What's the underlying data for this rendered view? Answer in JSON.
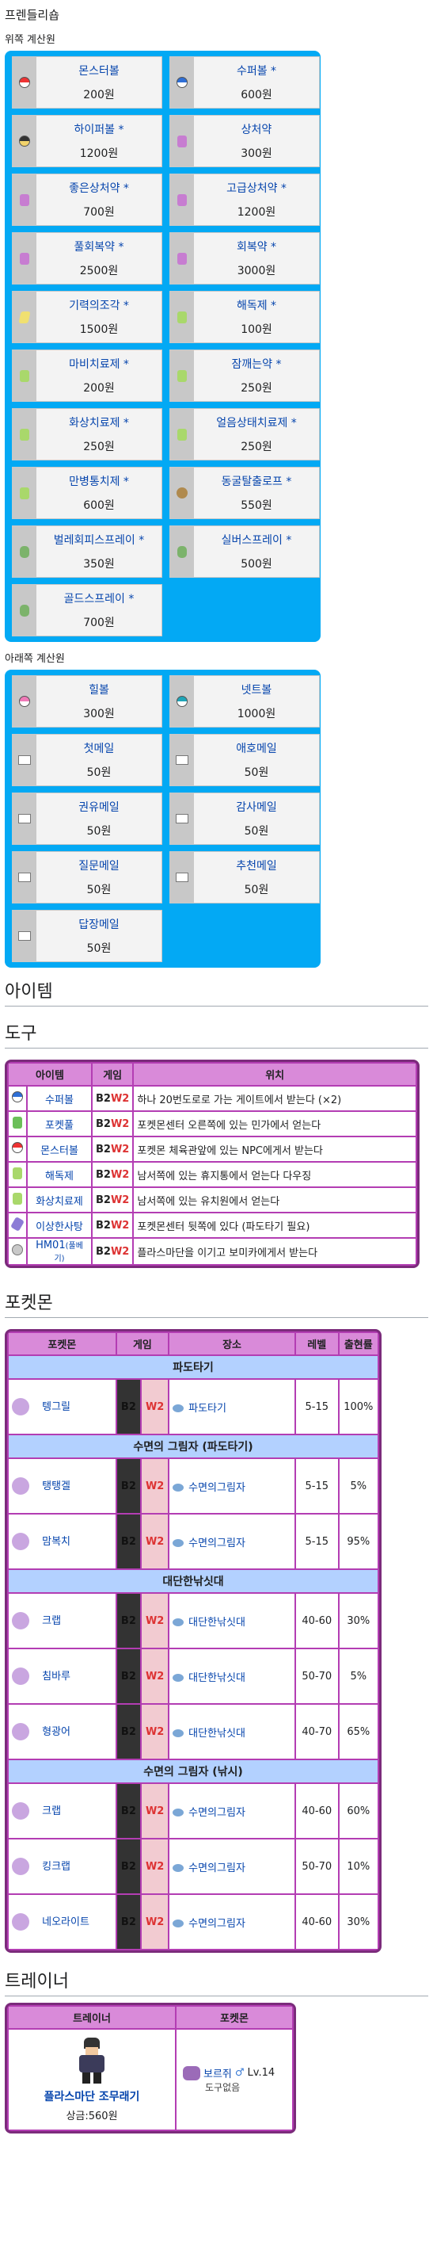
{
  "page": {
    "friendly_shop_title": "프렌들리숍",
    "upper_calc": "위쪽 계산원",
    "lower_calc": "아래쪽 계산원",
    "h_items": "아이템",
    "h_tools": "도구",
    "h_pokemon": "포켓몬",
    "h_trainer": "트레이너"
  },
  "upper_items": [
    {
      "name": "몬스터볼",
      "price": "200원",
      "icon": "red-ball"
    },
    {
      "name": "수퍼볼 *",
      "price": "600원",
      "icon": "blue-ball"
    },
    {
      "name": "하이퍼볼 *",
      "price": "1200원",
      "icon": "yellow-ball"
    },
    {
      "name": "상처약",
      "price": "300원",
      "icon": "potion"
    },
    {
      "name": "좋은상처약 *",
      "price": "700원",
      "icon": "potion"
    },
    {
      "name": "고급상처약 *",
      "price": "1200원",
      "icon": "potion"
    },
    {
      "name": "풀회복약 *",
      "price": "2500원",
      "icon": "potion"
    },
    {
      "name": "회복약 *",
      "price": "3000원",
      "icon": "potion"
    },
    {
      "name": "기력의조각 *",
      "price": "1500원",
      "icon": "shard"
    },
    {
      "name": "해독제 *",
      "price": "100원",
      "icon": "medicine"
    },
    {
      "name": "마비치료제 *",
      "price": "200원",
      "icon": "medicine"
    },
    {
      "name": "잠깨는약 *",
      "price": "250원",
      "icon": "medicine"
    },
    {
      "name": "화상치료제 *",
      "price": "250원",
      "icon": "medicine"
    },
    {
      "name": "얼음상태치료제 *",
      "price": "250원",
      "icon": "medicine"
    },
    {
      "name": "만병통치제 *",
      "price": "600원",
      "icon": "medicine"
    },
    {
      "name": "동굴탈출로프 *",
      "price": "550원",
      "icon": "rope"
    },
    {
      "name": "벌레회피스프레이 *",
      "price": "350원",
      "icon": "spray"
    },
    {
      "name": "실버스프레이 *",
      "price": "500원",
      "icon": "spray"
    },
    {
      "name": "골드스프레이 *",
      "price": "700원",
      "icon": "spray"
    }
  ],
  "lower_items": [
    {
      "name": "힐볼",
      "price": "300원",
      "icon": "pink-ball"
    },
    {
      "name": "넷트볼",
      "price": "1000원",
      "icon": "net-ball"
    },
    {
      "name": "첫메일",
      "price": "50원",
      "icon": "mail"
    },
    {
      "name": "애호메일",
      "price": "50원",
      "icon": "mail"
    },
    {
      "name": "권유메일",
      "price": "50원",
      "icon": "mail"
    },
    {
      "name": "감사메일",
      "price": "50원",
      "icon": "mail"
    },
    {
      "name": "질문메일",
      "price": "50원",
      "icon": "mail"
    },
    {
      "name": "추천메일",
      "price": "50원",
      "icon": "mail"
    },
    {
      "name": "답장메일",
      "price": "50원",
      "icon": "mail"
    }
  ],
  "tools_table": {
    "headers": [
      "아이템",
      "게임",
      "위치"
    ],
    "rows": [
      {
        "item": "수퍼볼",
        "b": "B2",
        "w": "W2",
        "loc": "하나 20번도로로 가는 게이트에서 받는다 (×2)",
        "icon": "blue-ball"
      },
      {
        "item": "포켓풀",
        "b": "B2",
        "w": "W2",
        "loc": "포켓몬센터 오른쪽에 있는 민가에서 얻는다",
        "icon": "sprout"
      },
      {
        "item": "몬스터볼",
        "b": "B2",
        "w": "W2",
        "loc": "포켓몬 체육관앞에 있는 NPC에게서 받는다",
        "icon": "red-ball"
      },
      {
        "item": "해독제",
        "b": "B2",
        "w": "W2",
        "loc": "남서쪽에 있는 휴지통에서 얻는다 다우징",
        "icon": "medicine"
      },
      {
        "item": "화상치료제",
        "b": "B2",
        "w": "W2",
        "loc": "남서쪽에 있는 유치원에서 얻는다",
        "icon": "medicine"
      },
      {
        "item": "이상한사탕",
        "b": "B2",
        "w": "W2",
        "loc": "포켓몬센터 뒷쪽에 있다 (파도타기 필요)",
        "icon": "candy"
      },
      {
        "item": "HM01",
        "item_extra": "(풀베기)",
        "b": "B2",
        "w": "W2",
        "loc": "플라스마단을 이기고 보미카에게서 받는다",
        "icon": "disc"
      }
    ]
  },
  "pokemon_table": {
    "headers": [
      "포켓몬",
      "게임",
      "장소",
      "레벨",
      "출현률"
    ],
    "sections": [
      {
        "title": "파도타기",
        "rows": [
          {
            "name": "텡그릴",
            "b": "B2",
            "w": "W2",
            "place": "파도타기",
            "level": "5-15",
            "rate": "100%"
          }
        ]
      },
      {
        "title": "수면의 그림자 (파도타기)",
        "rows": [
          {
            "name": "탱탱겔",
            "b": "B2",
            "w": "W2",
            "place": "수면의그림자",
            "level": "5-15",
            "rate": "5%"
          },
          {
            "name": "맘복치",
            "b": "B2",
            "w": "W2",
            "place": "수면의그림자",
            "level": "5-15",
            "rate": "95%"
          }
        ]
      },
      {
        "title": "대단한낚싯대",
        "rows": [
          {
            "name": "크랩",
            "b": "B2",
            "w": "W2",
            "place": "대단한낚싯대",
            "level": "40-60",
            "rate": "30%"
          },
          {
            "name": "침바루",
            "b": "B2",
            "w": "W2",
            "place": "대단한낚싯대",
            "level": "50-70",
            "rate": "5%"
          },
          {
            "name": "형광어",
            "b": "B2",
            "w": "W2",
            "place": "대단한낚싯대",
            "level": "40-70",
            "rate": "65%"
          }
        ]
      },
      {
        "title": "수면의 그림자 (낚시)",
        "rows": [
          {
            "name": "크랩",
            "b": "B2",
            "w": "W2",
            "place": "수면의그림자",
            "level": "40-60",
            "rate": "60%"
          },
          {
            "name": "킹크랩",
            "b": "B2",
            "w": "W2",
            "place": "수면의그림자",
            "level": "50-70",
            "rate": "10%"
          },
          {
            "name": "네오라이트",
            "b": "B2",
            "w": "W2",
            "place": "수면의그림자",
            "level": "40-60",
            "rate": "30%"
          }
        ]
      }
    ]
  },
  "trainer_table": {
    "headers": [
      "트레이너",
      "포켓몬"
    ],
    "trainer_name": "플라스마단 조무래기",
    "reward": "상금:560원",
    "pokemon": "보르쥐",
    "gender": "♂",
    "level": "Lv.14",
    "held": "도구없음"
  }
}
